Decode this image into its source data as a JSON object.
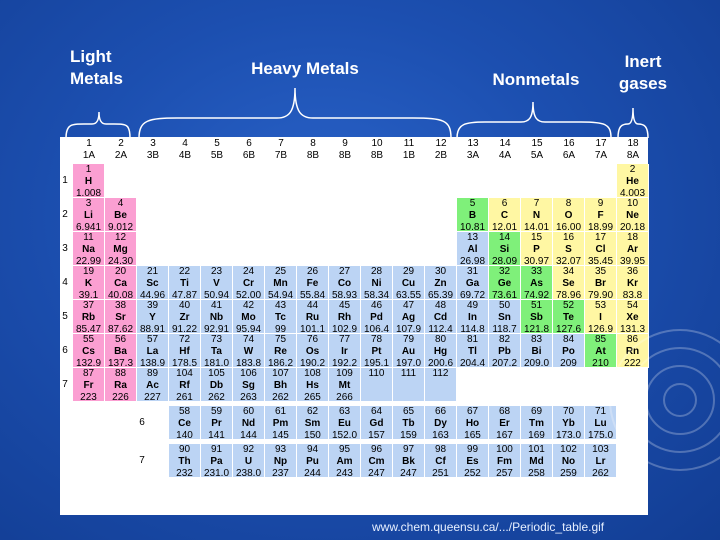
{
  "categories": {
    "light_metals": "Light\nMetals",
    "heavy_metals": "Heavy Metals",
    "nonmetals": "Nonmetals",
    "inert_gases": "Inert\ngases"
  },
  "group_headers": [
    [
      "1",
      "1A"
    ],
    [
      "2",
      "2A"
    ],
    [
      "3",
      "3B"
    ],
    [
      "4",
      "4B"
    ],
    [
      "5",
      "5B"
    ],
    [
      "6",
      "6B"
    ],
    [
      "7",
      "7B"
    ],
    [
      "8",
      "8B"
    ],
    [
      "9",
      "8B"
    ],
    [
      "10",
      "8B"
    ],
    [
      "11",
      "1B"
    ],
    [
      "12",
      "2B"
    ],
    [
      "13",
      "3A"
    ],
    [
      "14",
      "4A"
    ],
    [
      "15",
      "5A"
    ],
    [
      "16",
      "6A"
    ],
    [
      "17",
      "7A"
    ],
    [
      "18",
      "8A"
    ]
  ],
  "periods": [
    "1",
    "2",
    "3",
    "4",
    "5",
    "6",
    "7"
  ],
  "series_periods": [
    "6",
    "7"
  ],
  "elements": [
    {
      "n": "1",
      "s": "H",
      "m": "1.008",
      "g": 1,
      "p": 1,
      "c": "pink"
    },
    {
      "n": "2",
      "s": "He",
      "m": "4.003",
      "g": 18,
      "p": 1,
      "c": "yellow"
    },
    {
      "n": "3",
      "s": "Li",
      "m": "6.941",
      "g": 1,
      "p": 2,
      "c": "pink"
    },
    {
      "n": "4",
      "s": "Be",
      "m": "9.012",
      "g": 2,
      "p": 2,
      "c": "pink"
    },
    {
      "n": "5",
      "s": "B",
      "m": "10.81",
      "g": 13,
      "p": 2,
      "c": "green"
    },
    {
      "n": "6",
      "s": "C",
      "m": "12.01",
      "g": 14,
      "p": 2,
      "c": "yellow"
    },
    {
      "n": "7",
      "s": "N",
      "m": "14.01",
      "g": 15,
      "p": 2,
      "c": "yellow"
    },
    {
      "n": "8",
      "s": "O",
      "m": "16.00",
      "g": 16,
      "p": 2,
      "c": "yellow"
    },
    {
      "n": "9",
      "s": "F",
      "m": "18.99",
      "g": 17,
      "p": 2,
      "c": "yellow"
    },
    {
      "n": "10",
      "s": "Ne",
      "m": "20.18",
      "g": 18,
      "p": 2,
      "c": "yellow"
    },
    {
      "n": "11",
      "s": "Na",
      "m": "22.99",
      "g": 1,
      "p": 3,
      "c": "pink"
    },
    {
      "n": "12",
      "s": "Mg",
      "m": "24.30",
      "g": 2,
      "p": 3,
      "c": "pink"
    },
    {
      "n": "13",
      "s": "Al",
      "m": "26.98",
      "g": 13,
      "p": 3,
      "c": "blue"
    },
    {
      "n": "14",
      "s": "Si",
      "m": "28.09",
      "g": 14,
      "p": 3,
      "c": "green"
    },
    {
      "n": "15",
      "s": "P",
      "m": "30.97",
      "g": 15,
      "p": 3,
      "c": "yellow"
    },
    {
      "n": "16",
      "s": "S",
      "m": "32.07",
      "g": 16,
      "p": 3,
      "c": "yellow"
    },
    {
      "n": "17",
      "s": "Cl",
      "m": "35.45",
      "g": 17,
      "p": 3,
      "c": "yellow"
    },
    {
      "n": "18",
      "s": "Ar",
      "m": "39.95",
      "g": 18,
      "p": 3,
      "c": "yellow"
    },
    {
      "n": "19",
      "s": "K",
      "m": "39.1",
      "g": 1,
      "p": 4,
      "c": "pink"
    },
    {
      "n": "20",
      "s": "Ca",
      "m": "40.08",
      "g": 2,
      "p": 4,
      "c": "pink"
    },
    {
      "n": "21",
      "s": "Sc",
      "m": "44.96",
      "g": 3,
      "p": 4,
      "c": "blue"
    },
    {
      "n": "22",
      "s": "Ti",
      "m": "47.87",
      "g": 4,
      "p": 4,
      "c": "blue"
    },
    {
      "n": "23",
      "s": "V",
      "m": "50.94",
      "g": 5,
      "p": 4,
      "c": "blue"
    },
    {
      "n": "24",
      "s": "Cr",
      "m": "52.00",
      "g": 6,
      "p": 4,
      "c": "blue"
    },
    {
      "n": "25",
      "s": "Mn",
      "m": "54.94",
      "g": 7,
      "p": 4,
      "c": "blue"
    },
    {
      "n": "26",
      "s": "Fe",
      "m": "55.84",
      "g": 8,
      "p": 4,
      "c": "blue"
    },
    {
      "n": "27",
      "s": "Co",
      "m": "58.93",
      "g": 9,
      "p": 4,
      "c": "blue"
    },
    {
      "n": "28",
      "s": "Ni",
      "m": "58.34",
      "g": 10,
      "p": 4,
      "c": "blue"
    },
    {
      "n": "29",
      "s": "Cu",
      "m": "63.55",
      "g": 11,
      "p": 4,
      "c": "blue"
    },
    {
      "n": "30",
      "s": "Zn",
      "m": "65.39",
      "g": 12,
      "p": 4,
      "c": "blue"
    },
    {
      "n": "31",
      "s": "Ga",
      "m": "69.72",
      "g": 13,
      "p": 4,
      "c": "blue"
    },
    {
      "n": "32",
      "s": "Ge",
      "m": "73.61",
      "g": 14,
      "p": 4,
      "c": "green"
    },
    {
      "n": "33",
      "s": "As",
      "m": "74.92",
      "g": 15,
      "p": 4,
      "c": "green"
    },
    {
      "n": "34",
      "s": "Se",
      "m": "78.96",
      "g": 16,
      "p": 4,
      "c": "yellow"
    },
    {
      "n": "35",
      "s": "Br",
      "m": "79.90",
      "g": 17,
      "p": 4,
      "c": "yellow"
    },
    {
      "n": "36",
      "s": "Kr",
      "m": "83.8",
      "g": 18,
      "p": 4,
      "c": "yellow"
    },
    {
      "n": "37",
      "s": "Rb",
      "m": "85.47",
      "g": 1,
      "p": 5,
      "c": "pink"
    },
    {
      "n": "38",
      "s": "Sr",
      "m": "87.62",
      "g": 2,
      "p": 5,
      "c": "pink"
    },
    {
      "n": "39",
      "s": "Y",
      "m": "88.91",
      "g": 3,
      "p": 5,
      "c": "blue"
    },
    {
      "n": "40",
      "s": "Zr",
      "m": "91.22",
      "g": 4,
      "p": 5,
      "c": "blue"
    },
    {
      "n": "41",
      "s": "Nb",
      "m": "92.91",
      "g": 5,
      "p": 5,
      "c": "blue"
    },
    {
      "n": "42",
      "s": "Mo",
      "m": "95.94",
      "g": 6,
      "p": 5,
      "c": "blue"
    },
    {
      "n": "43",
      "s": "Tc",
      "m": "99",
      "g": 7,
      "p": 5,
      "c": "blue"
    },
    {
      "n": "44",
      "s": "Ru",
      "m": "101.1",
      "g": 8,
      "p": 5,
      "c": "blue"
    },
    {
      "n": "45",
      "s": "Rh",
      "m": "102.9",
      "g": 9,
      "p": 5,
      "c": "blue"
    },
    {
      "n": "46",
      "s": "Pd",
      "m": "106.4",
      "g": 10,
      "p": 5,
      "c": "blue"
    },
    {
      "n": "47",
      "s": "Ag",
      "m": "107.9",
      "g": 11,
      "p": 5,
      "c": "blue"
    },
    {
      "n": "48",
      "s": "Cd",
      "m": "112.4",
      "g": 12,
      "p": 5,
      "c": "blue"
    },
    {
      "n": "49",
      "s": "In",
      "m": "114.8",
      "g": 13,
      "p": 5,
      "c": "blue"
    },
    {
      "n": "50",
      "s": "Sn",
      "m": "118.7",
      "g": 14,
      "p": 5,
      "c": "blue"
    },
    {
      "n": "51",
      "s": "Sb",
      "m": "121.8",
      "g": 15,
      "p": 5,
      "c": "green"
    },
    {
      "n": "52",
      "s": "Te",
      "m": "127.6",
      "g": 16,
      "p": 5,
      "c": "green"
    },
    {
      "n": "53",
      "s": "I",
      "m": "126.9",
      "g": 17,
      "p": 5,
      "c": "yellow"
    },
    {
      "n": "54",
      "s": "Xe",
      "m": "131.3",
      "g": 18,
      "p": 5,
      "c": "yellow"
    },
    {
      "n": "55",
      "s": "Cs",
      "m": "132.9",
      "g": 1,
      "p": 6,
      "c": "pink"
    },
    {
      "n": "56",
      "s": "Ba",
      "m": "137.3",
      "g": 2,
      "p": 6,
      "c": "pink"
    },
    {
      "n": "57",
      "s": "La",
      "m": "138.9",
      "g": 3,
      "p": 6,
      "c": "blue"
    },
    {
      "n": "72",
      "s": "Hf",
      "m": "178.5",
      "g": 4,
      "p": 6,
      "c": "blue"
    },
    {
      "n": "73",
      "s": "Ta",
      "m": "181.0",
      "g": 5,
      "p": 6,
      "c": "blue"
    },
    {
      "n": "74",
      "s": "W",
      "m": "183.8",
      "g": 6,
      "p": 6,
      "c": "blue"
    },
    {
      "n": "75",
      "s": "Re",
      "m": "186.2",
      "g": 7,
      "p": 6,
      "c": "blue"
    },
    {
      "n": "76",
      "s": "Os",
      "m": "190.2",
      "g": 8,
      "p": 6,
      "c": "blue"
    },
    {
      "n": "77",
      "s": "Ir",
      "m": "192.2",
      "g": 9,
      "p": 6,
      "c": "blue"
    },
    {
      "n": "78",
      "s": "Pt",
      "m": "195.1",
      "g": 10,
      "p": 6,
      "c": "blue"
    },
    {
      "n": "79",
      "s": "Au",
      "m": "197.0",
      "g": 11,
      "p": 6,
      "c": "blue"
    },
    {
      "n": "80",
      "s": "Hg",
      "m": "200.6",
      "g": 12,
      "p": 6,
      "c": "blue"
    },
    {
      "n": "81",
      "s": "Tl",
      "m": "204.4",
      "g": 13,
      "p": 6,
      "c": "blue"
    },
    {
      "n": "82",
      "s": "Pb",
      "m": "207.2",
      "g": 14,
      "p": 6,
      "c": "blue"
    },
    {
      "n": "83",
      "s": "Bi",
      "m": "209.0",
      "g": 15,
      "p": 6,
      "c": "blue"
    },
    {
      "n": "84",
      "s": "Po",
      "m": "209",
      "g": 16,
      "p": 6,
      "c": "blue"
    },
    {
      "n": "85",
      "s": "At",
      "m": "210",
      "g": 17,
      "p": 6,
      "c": "green"
    },
    {
      "n": "86",
      "s": "Rn",
      "m": "222",
      "g": 18,
      "p": 6,
      "c": "yellow"
    },
    {
      "n": "87",
      "s": "Fr",
      "m": "223",
      "g": 1,
      "p": 7,
      "c": "pink"
    },
    {
      "n": "88",
      "s": "Ra",
      "m": "226",
      "g": 2,
      "p": 7,
      "c": "pink"
    },
    {
      "n": "89",
      "s": "Ac",
      "m": "227",
      "g": 3,
      "p": 7,
      "c": "blue"
    },
    {
      "n": "104",
      "s": "Rf",
      "m": "261",
      "g": 4,
      "p": 7,
      "c": "blue"
    },
    {
      "n": "105",
      "s": "Db",
      "m": "262",
      "g": 5,
      "p": 7,
      "c": "blue"
    },
    {
      "n": "106",
      "s": "Sg",
      "m": "263",
      "g": 6,
      "p": 7,
      "c": "blue"
    },
    {
      "n": "107",
      "s": "Bh",
      "m": "262",
      "g": 7,
      "p": 7,
      "c": "blue"
    },
    {
      "n": "108",
      "s": "Hs",
      "m": "265",
      "g": 8,
      "p": 7,
      "c": "blue"
    },
    {
      "n": "109",
      "s": "Mt",
      "m": "266",
      "g": 9,
      "p": 7,
      "c": "blue"
    },
    {
      "n": "110",
      "s": "",
      "m": "",
      "g": 10,
      "p": 7,
      "c": "blue"
    },
    {
      "n": "111",
      "s": "",
      "m": "",
      "g": 11,
      "p": 7,
      "c": "blue"
    },
    {
      "n": "112",
      "s": "",
      "m": "",
      "g": 12,
      "p": 7,
      "c": "blue"
    }
  ],
  "lanthanides": [
    {
      "n": "58",
      "s": "Ce",
      "m": "140"
    },
    {
      "n": "59",
      "s": "Pr",
      "m": "141"
    },
    {
      "n": "60",
      "s": "Nd",
      "m": "144"
    },
    {
      "n": "61",
      "s": "Pm",
      "m": "145"
    },
    {
      "n": "62",
      "s": "Sm",
      "m": "150"
    },
    {
      "n": "63",
      "s": "Eu",
      "m": "152.0"
    },
    {
      "n": "64",
      "s": "Gd",
      "m": "157"
    },
    {
      "n": "65",
      "s": "Tb",
      "m": "159"
    },
    {
      "n": "66",
      "s": "Dy",
      "m": "163"
    },
    {
      "n": "67",
      "s": "Ho",
      "m": "165"
    },
    {
      "n": "68",
      "s": "Er",
      "m": "167"
    },
    {
      "n": "69",
      "s": "Tm",
      "m": "169"
    },
    {
      "n": "70",
      "s": "Yb",
      "m": "173.0"
    },
    {
      "n": "71",
      "s": "Lu",
      "m": "175.0"
    }
  ],
  "actinides": [
    {
      "n": "90",
      "s": "Th",
      "m": "232"
    },
    {
      "n": "91",
      "s": "Pa",
      "m": "231.0"
    },
    {
      "n": "92",
      "s": "U",
      "m": "238.0"
    },
    {
      "n": "93",
      "s": "Np",
      "m": "237"
    },
    {
      "n": "94",
      "s": "Pu",
      "m": "244"
    },
    {
      "n": "95",
      "s": "Am",
      "m": "243"
    },
    {
      "n": "96",
      "s": "Cm",
      "m": "247"
    },
    {
      "n": "97",
      "s": "Bk",
      "m": "247"
    },
    {
      "n": "98",
      "s": "Cf",
      "m": "251"
    },
    {
      "n": "99",
      "s": "Es",
      "m": "252"
    },
    {
      "n": "100",
      "s": "Fm",
      "m": "257"
    },
    {
      "n": "101",
      "s": "Md",
      "m": "258"
    },
    {
      "n": "102",
      "s": "No",
      "m": "259"
    },
    {
      "n": "103",
      "s": "Lr",
      "m": "262"
    }
  ],
  "source_text": "www.chem.queensu.ca/.../Periodic_table.gif"
}
